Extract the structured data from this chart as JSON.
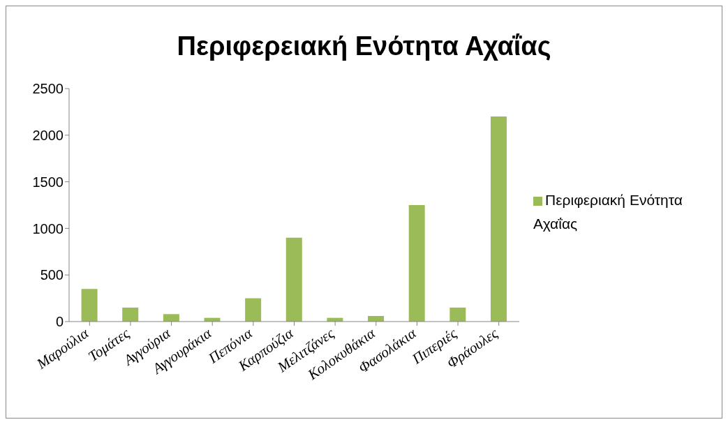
{
  "chart_data": {
    "type": "bar",
    "title": "Περιφερειακή Ενότητα Αχαΐας",
    "categories": [
      "Μαρούλια",
      "Τομάτες",
      "Αγγούρια",
      "Αγγουράκια",
      "Πεπόνια",
      "Καρπούζια",
      "Μελιτζάνες",
      "Κολοκυθάκια",
      "Φασολάκια",
      "Πιπεριές",
      "Φράουλες"
    ],
    "series": [
      {
        "name": "Περιφεριακή Ενότητα Αχαΐας",
        "color": "#9bbb59",
        "values": [
          350,
          150,
          80,
          40,
          250,
          900,
          40,
          60,
          1250,
          150,
          2200
        ]
      }
    ],
    "ylim": [
      0,
      2500
    ],
    "yticks": [
      0,
      500,
      1000,
      1500,
      2000,
      2500
    ],
    "grid": false,
    "legend": "right"
  }
}
